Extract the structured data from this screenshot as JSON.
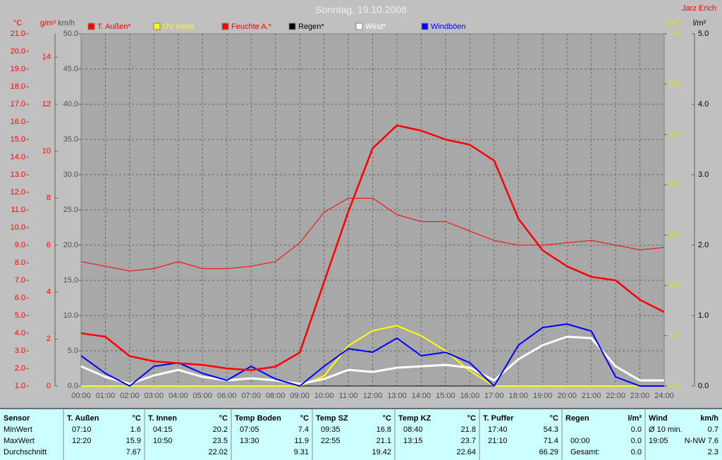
{
  "author": "Jarz Erich",
  "chart_data": {
    "type": "line",
    "title": "Sonntag, 19.10.2008",
    "categories": [
      "00:00",
      "01:00",
      "02:00",
      "03:00",
      "04:00",
      "05:00",
      "06:00",
      "07:00",
      "08:00",
      "09:00",
      "10:00",
      "11:00",
      "12:00",
      "13:00",
      "14:00",
      "15:00",
      "16:00",
      "17:00",
      "18:00",
      "19:00",
      "20:00",
      "21:00",
      "22:00",
      "23:00",
      "24:00"
    ],
    "grid": true,
    "axes": [
      {
        "label": "°C",
        "color": "#ff0000",
        "ylim": [
          1,
          21
        ],
        "yticks": [
          {
            "value": 1,
            "label": "1.0"
          },
          {
            "value": 2,
            "label": "2.0"
          },
          {
            "value": 3,
            "label": "3.0"
          },
          {
            "value": 4,
            "label": "4.0"
          },
          {
            "value": 5,
            "label": "5.0"
          },
          {
            "value": 6,
            "label": "6.0"
          },
          {
            "value": 7,
            "label": "7.0"
          },
          {
            "value": 8,
            "label": "8.0"
          },
          {
            "value": 9,
            "label": "9.0"
          },
          {
            "value": 10,
            "label": "10.0"
          },
          {
            "value": 11,
            "label": "11.0"
          },
          {
            "value": 12,
            "label": "12.0"
          },
          {
            "value": 13,
            "label": "13.0"
          },
          {
            "value": 14,
            "label": "14.0"
          },
          {
            "value": 15,
            "label": "15.0"
          },
          {
            "value": 16,
            "label": "16.0"
          },
          {
            "value": 17,
            "label": "17.0"
          },
          {
            "value": 18,
            "label": "18.0"
          },
          {
            "value": 19,
            "label": "19.0"
          },
          {
            "value": 20,
            "label": "20.0"
          },
          {
            "value": 21,
            "label": "21.0"
          }
        ]
      },
      {
        "label": "g/m³",
        "color": "#ff0000",
        "ylim": [
          0,
          15
        ],
        "yticks": [
          0,
          2,
          4,
          6,
          8,
          10,
          12,
          14
        ]
      },
      {
        "label": "km/h",
        "color": "#505050",
        "ylim": [
          0,
          50
        ],
        "yticks": [
          {
            "value": 0,
            "label": "0.0"
          },
          {
            "value": 5,
            "label": "5.0"
          },
          {
            "value": 10,
            "label": "10.0"
          },
          {
            "value": 15,
            "label": "15.0"
          },
          {
            "value": 20,
            "label": "20.0"
          },
          {
            "value": 25,
            "label": "25.0"
          },
          {
            "value": 30,
            "label": "30.0"
          },
          {
            "value": 35,
            "label": "35.0"
          },
          {
            "value": 40,
            "label": "40.0"
          },
          {
            "value": 45,
            "label": "45.0"
          },
          {
            "value": 50,
            "label": "50.0"
          }
        ]
      },
      {
        "label": "UV-I",
        "color": "#e0e000",
        "ylim": [
          0,
          7
        ],
        "yticks": [
          {
            "value": 0,
            "label": "0.0"
          },
          {
            "value": 1,
            "label": "1.0"
          },
          {
            "value": 2,
            "label": "2.0"
          },
          {
            "value": 3,
            "label": "3.0"
          },
          {
            "value": 4,
            "label": "4.0"
          },
          {
            "value": 5,
            "label": "5.0"
          },
          {
            "value": 6,
            "label": "6.0"
          },
          {
            "value": 7,
            "label": "7.0"
          }
        ]
      },
      {
        "label": "l/m²",
        "color": "#000000",
        "ylim": [
          0,
          5
        ],
        "yticks": [
          {
            "value": 0,
            "label": "0.0"
          },
          {
            "value": 1,
            "label": "1.0"
          },
          {
            "value": 2,
            "label": "2.0"
          },
          {
            "value": 3,
            "label": "3.0"
          },
          {
            "value": 4,
            "label": "4.0"
          },
          {
            "value": 5,
            "label": "5.0"
          }
        ]
      }
    ],
    "series": [
      {
        "name": "T. Außen*",
        "color": "#ff0000",
        "axis": 0,
        "width": 2.5,
        "values": [
          4.0,
          3.8,
          2.7,
          2.4,
          2.3,
          2.2,
          2.0,
          1.9,
          2.1,
          2.9,
          6.9,
          10.9,
          14.5,
          15.8,
          15.5,
          15.0,
          14.7,
          13.8,
          10.5,
          8.7,
          7.8,
          7.2,
          7.0,
          5.9,
          5.2
        ]
      },
      {
        "name": "UV Index",
        "color": "#ffff00",
        "axis": 3,
        "width": 2,
        "values": [
          0,
          0,
          0,
          0,
          0,
          0,
          0,
          0,
          0,
          0,
          0.2,
          0.8,
          1.1,
          1.2,
          1.0,
          0.7,
          0.3,
          0,
          0,
          0,
          0,
          0,
          0,
          0,
          0
        ]
      },
      {
        "name": "Feuchte A.*",
        "color": "#ff0000",
        "axis": 1,
        "width": 1,
        "values": [
          5.3,
          5.1,
          4.9,
          5.0,
          5.3,
          5.0,
          5.0,
          5.1,
          5.3,
          6.1,
          7.4,
          8.0,
          8.0,
          7.3,
          7.0,
          7.0,
          6.6,
          6.2,
          6.0,
          6.0,
          6.1,
          6.2,
          6.0,
          5.8,
          5.9
        ]
      },
      {
        "name": "Regen*",
        "color": "#000000",
        "axis": 4,
        "width": 1,
        "values": [
          0,
          0,
          0,
          0,
          0,
          0,
          0,
          0,
          0,
          0,
          0,
          0,
          0,
          0,
          0,
          0,
          0,
          0,
          0,
          0,
          0,
          0,
          0,
          0,
          0
        ]
      },
      {
        "name": "Wind*",
        "color": "#ffffff",
        "axis": 2,
        "width": 3,
        "values": [
          2.8,
          1.3,
          0.3,
          1.5,
          2.3,
          1.3,
          0.8,
          1.1,
          0.8,
          0.3,
          1.0,
          2.3,
          2.0,
          2.6,
          2.8,
          3.0,
          2.6,
          0.8,
          3.8,
          5.8,
          7.0,
          6.8,
          2.8,
          0.8,
          0.8
        ]
      },
      {
        "name": "Windböen",
        "color": "#0000ff",
        "axis": 2,
        "width": 2,
        "values": [
          4.3,
          1.8,
          0,
          2.8,
          3.3,
          1.8,
          0.8,
          2.8,
          1.0,
          0,
          2.8,
          5.3,
          4.8,
          6.8,
          4.3,
          4.8,
          3.3,
          0,
          5.8,
          8.3,
          8.8,
          7.8,
          1.3,
          0,
          0
        ]
      }
    ]
  },
  "table": {
    "row_labels": [
      "Sensor",
      "MinWert",
      "MaxWert",
      "Durchschnitt"
    ],
    "columns": [
      {
        "name": "T. Außen",
        "unit": "°C",
        "rows": [
          [
            "07:10",
            "1.6"
          ],
          [
            "12:20",
            "15.9"
          ],
          [
            "7.67"
          ]
        ]
      },
      {
        "name": "T. Innen",
        "unit": "°C",
        "rows": [
          [
            "04:15",
            "20.2"
          ],
          [
            "10:50",
            "23.5"
          ],
          [
            "22.02"
          ]
        ]
      },
      {
        "name": "Temp Boden",
        "unit": "°C",
        "rows": [
          [
            "07:05",
            "7.4"
          ],
          [
            "13:30",
            "11.9"
          ],
          [
            "9.31"
          ]
        ]
      },
      {
        "name": "Temp SZ",
        "unit": "°C",
        "rows": [
          [
            "09:35",
            "16.8"
          ],
          [
            "22:55",
            "21.1"
          ],
          [
            "19.42"
          ]
        ]
      },
      {
        "name": "Temp KZ",
        "unit": "°C",
        "rows": [
          [
            "08:40",
            "21.8"
          ],
          [
            "13:15",
            "23.7"
          ],
          [
            "22.64"
          ]
        ]
      },
      {
        "name": "T. Puffer",
        "unit": "°C",
        "rows": [
          [
            "17:40",
            "54.3"
          ],
          [
            "21:10",
            "71.4"
          ],
          [
            "66.29"
          ]
        ]
      },
      {
        "name": "Regen",
        "unit": "l/m²",
        "rows": [
          [
            "0.0"
          ],
          [
            "00:00",
            "0.0"
          ],
          [
            "Gesamt:",
            "0.0"
          ]
        ]
      },
      {
        "name": "Wind",
        "unit": "km/h",
        "rows": [
          [
            "Ø 10 min.",
            "0.7"
          ],
          [
            "19:05",
            "N-NW 7.6"
          ],
          [
            "2.3"
          ]
        ]
      }
    ]
  }
}
